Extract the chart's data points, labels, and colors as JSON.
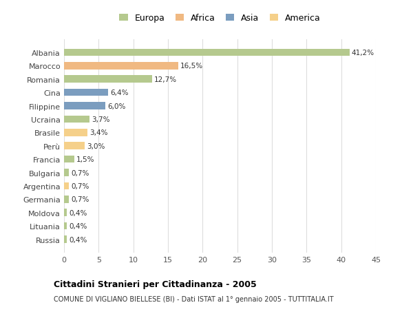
{
  "categories": [
    "Albania",
    "Marocco",
    "Romania",
    "Cina",
    "Filippine",
    "Ucraina",
    "Brasile",
    "Perù",
    "Francia",
    "Bulgaria",
    "Argentina",
    "Germania",
    "Moldova",
    "Lituania",
    "Russia"
  ],
  "values": [
    41.2,
    16.5,
    12.7,
    6.4,
    6.0,
    3.7,
    3.4,
    3.0,
    1.5,
    0.7,
    0.7,
    0.7,
    0.4,
    0.4,
    0.4
  ],
  "labels": [
    "41,2%",
    "16,5%",
    "12,7%",
    "6,4%",
    "6,0%",
    "3,7%",
    "3,4%",
    "3,0%",
    "1,5%",
    "0,7%",
    "0,7%",
    "0,7%",
    "0,4%",
    "0,4%",
    "0,4%"
  ],
  "colors": [
    "#b5c98e",
    "#f0b982",
    "#b5c98e",
    "#7b9dbf",
    "#7b9dbf",
    "#b5c98e",
    "#f5d08a",
    "#f5d08a",
    "#b5c98e",
    "#b5c98e",
    "#f5d08a",
    "#b5c98e",
    "#b5c98e",
    "#b5c98e",
    "#b5c98e"
  ],
  "legend_labels": [
    "Europa",
    "Africa",
    "Asia",
    "America"
  ],
  "legend_colors": [
    "#b5c98e",
    "#f0b982",
    "#7b9dbf",
    "#f5d08a"
  ],
  "xlim": [
    0,
    45
  ],
  "xticks": [
    0,
    5,
    10,
    15,
    20,
    25,
    30,
    35,
    40,
    45
  ],
  "title": "Cittadini Stranieri per Cittadinanza - 2005",
  "subtitle": "COMUNE DI VIGLIANO BIELLESE (BI) - Dati ISTAT al 1° gennaio 2005 - TUTTITALIA.IT",
  "background_color": "#ffffff",
  "plot_background": "#ffffff",
  "grid_color": "#dddddd",
  "bar_height": 0.55,
  "figsize": [
    6.0,
    4.6
  ],
  "dpi": 100
}
